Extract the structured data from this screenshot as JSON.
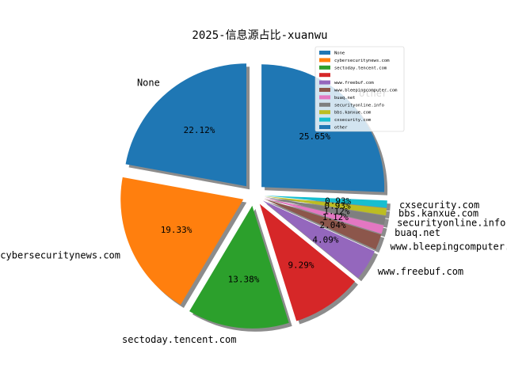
{
  "chart_data": {
    "type": "pie",
    "title": "2025-信息源占比-xuanwu",
    "slices": [
      {
        "label": "None",
        "percent_label": "22.12%",
        "value": 22.12,
        "color": "#1f77b4",
        "show_label": true
      },
      {
        "label": "cybersecuritynews.com",
        "percent_label": "19.33%",
        "value": 19.33,
        "color": "#ff7f0e",
        "show_label": true
      },
      {
        "label": "sectoday.tencent.com",
        "percent_label": "13.38%",
        "value": 13.38,
        "color": "#2ca02c",
        "show_label": true
      },
      {
        "label": "",
        "percent_label": "9.29%",
        "value": 9.29,
        "color": "#d62728",
        "show_label": false
      },
      {
        "label": "www.freebuf.com",
        "percent_label": "4.09%",
        "value": 4.09,
        "color": "#9467bd",
        "show_label": true
      },
      {
        "label": "www.bleepingcomputer.com",
        "percent_label": "2.04%",
        "value": 2.04,
        "color": "#8c564b",
        "show_label": true
      },
      {
        "label": "buaq.net",
        "percent_label": "1.12%",
        "value": 1.12,
        "color": "#e377c2",
        "show_label": true
      },
      {
        "label": "securityonline.info",
        "percent_label": "1.12%",
        "value": 1.12,
        "color": "#7f7f7f",
        "show_label": true
      },
      {
        "label": "bbs.kanxue.com",
        "percent_label": "0.93%",
        "value": 0.93,
        "color": "#bcbd22",
        "show_label": true
      },
      {
        "label": "cxsecurity.com",
        "percent_label": "0.93%",
        "value": 0.93,
        "color": "#17becf",
        "show_label": true
      },
      {
        "label": "other",
        "percent_label": "25.65%",
        "value": 25.65,
        "color": "#1f77b4",
        "show_label": true
      }
    ],
    "legend": {
      "placement": "top-right"
    },
    "startangle_deg": 90,
    "direction": "counterclockwise"
  }
}
